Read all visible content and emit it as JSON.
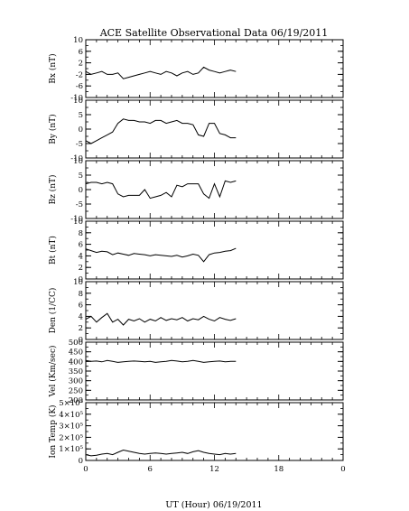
{
  "title": "ACE Satellite Observational Data   06/19/2011",
  "xlabel": "UT (Hour)  06/19/2011",
  "chart_data": [
    {
      "type": "line",
      "ylabel": "Bx (nT)",
      "ylim": [
        -10,
        10
      ],
      "yticks": [
        "-10",
        "-6",
        "-2",
        "2",
        "6",
        "10"
      ],
      "yticks_minor_step": 2,
      "xlim": [
        0,
        24
      ],
      "xticks": [
        "0",
        "6",
        "12",
        "18",
        "0"
      ],
      "series": [
        {
          "x": [
            0,
            0.5,
            1,
            1.5,
            2,
            2.5,
            3,
            3.5,
            4,
            4.5,
            5,
            5.5,
            6,
            6.5,
            7,
            7.5,
            8,
            8.5,
            9,
            9.5,
            10,
            10.5,
            11,
            11.5,
            12,
            12.5,
            13,
            13.5,
            14
          ],
          "y": [
            -1,
            -2,
            -1.5,
            -1,
            -2,
            -2,
            -1.5,
            -3.5,
            -3,
            -2.5,
            -2,
            -1.5,
            -1,
            -1.5,
            -2,
            -1,
            -1.5,
            -2.5,
            -1.5,
            -1,
            -2,
            -1.5,
            0.5,
            -0.5,
            -1,
            -1.5,
            -1,
            -0.5,
            -1
          ]
        }
      ]
    },
    {
      "type": "line",
      "ylabel": "By (nT)",
      "ylim": [
        -10,
        10
      ],
      "yticks": [
        "-10",
        "-5",
        "0",
        "5",
        "10"
      ],
      "yticks_minor_step": 2.5,
      "xlim": [
        0,
        24
      ],
      "xticks": [
        "0",
        "6",
        "12",
        "18",
        "0"
      ],
      "series": [
        {
          "x": [
            0,
            0.5,
            1,
            1.5,
            2,
            2.5,
            3,
            3.5,
            4,
            4.5,
            5,
            5.5,
            6,
            6.5,
            7,
            7.5,
            8,
            8.5,
            9,
            9.5,
            10,
            10.5,
            11,
            11.5,
            12,
            12.5,
            13,
            13.5,
            14
          ],
          "y": [
            -4,
            -5,
            -4,
            -3,
            -2,
            -1,
            2,
            3.5,
            3,
            3,
            2.5,
            2.5,
            2,
            3,
            3,
            2,
            2.5,
            3,
            2,
            2,
            1.5,
            -2,
            -2.5,
            2,
            2,
            -1.5,
            -2,
            -3,
            -3
          ]
        }
      ]
    },
    {
      "type": "line",
      "ylabel": "Bz (nT)",
      "ylim": [
        -10,
        10
      ],
      "yticks": [
        "-10",
        "-5",
        "0",
        "5",
        "10"
      ],
      "yticks_minor_step": 2.5,
      "xlim": [
        0,
        24
      ],
      "xticks": [
        "0",
        "6",
        "12",
        "18",
        "0"
      ],
      "series": [
        {
          "x": [
            0,
            0.5,
            1,
            1.5,
            2,
            2.5,
            3,
            3.5,
            4,
            4.5,
            5,
            5.5,
            6,
            6.5,
            7,
            7.5,
            8,
            8.5,
            9,
            9.5,
            10,
            10.5,
            11,
            11.5,
            12,
            12.5,
            13,
            13.5,
            14
          ],
          "y": [
            2,
            2.5,
            2.5,
            2,
            2.5,
            2,
            -1.5,
            -2.5,
            -2,
            -2,
            -2,
            0,
            -3,
            -2.5,
            -2,
            -1,
            -2.5,
            1.5,
            1,
            2,
            2,
            2,
            -1.5,
            -3,
            2,
            -2.5,
            3,
            2.5,
            3
          ]
        }
      ]
    },
    {
      "type": "line",
      "ylabel": "Bt (nT)",
      "ylim": [
        0,
        10
      ],
      "yticks": [
        "0",
        "2",
        "4",
        "6",
        "8",
        "10"
      ],
      "yticks_minor_step": 1,
      "xlim": [
        0,
        24
      ],
      "xticks": [
        "0",
        "6",
        "12",
        "18",
        "0"
      ],
      "series": [
        {
          "x": [
            0,
            0.5,
            1,
            1.5,
            2,
            2.5,
            3,
            3.5,
            4,
            4.5,
            5,
            5.5,
            6,
            6.5,
            7,
            7.5,
            8,
            8.5,
            9,
            9.5,
            10,
            10.5,
            11,
            11.5,
            12,
            12.5,
            13,
            13.5,
            14
          ],
          "y": [
            5.2,
            4.9,
            4.6,
            4.8,
            4.7,
            4.2,
            4.5,
            4.3,
            4.1,
            4.4,
            4.3,
            4.2,
            4.0,
            4.2,
            4.1,
            4.0,
            3.9,
            4.1,
            3.8,
            4.0,
            4.3,
            4.1,
            3.0,
            4.2,
            4.5,
            4.6,
            4.8,
            4.9,
            5.3
          ]
        }
      ]
    },
    {
      "type": "line",
      "ylabel": "Den (1/CC)",
      "ylim": [
        0,
        10
      ],
      "yticks": [
        "0",
        "2",
        "4",
        "6",
        "8",
        "10"
      ],
      "yticks_minor_step": 1,
      "xlim": [
        0,
        24
      ],
      "xticks": [
        "0",
        "6",
        "12",
        "18",
        "0"
      ],
      "series": [
        {
          "x": [
            0,
            0.5,
            1,
            1.5,
            2,
            2.5,
            3,
            3.5,
            4,
            4.5,
            5,
            5.5,
            6,
            6.5,
            7,
            7.5,
            8,
            8.5,
            9,
            9.5,
            10,
            10.5,
            11,
            11.5,
            12,
            12.5,
            13,
            13.5,
            14
          ],
          "y": [
            3.5,
            4,
            3,
            3.8,
            4.5,
            3,
            3.5,
            2.5,
            3.5,
            3.2,
            3.6,
            3,
            3.5,
            3.2,
            3.8,
            3.3,
            3.6,
            3.4,
            3.8,
            3.2,
            3.6,
            3.4,
            4,
            3.5,
            3.2,
            3.8,
            3.5,
            3.3,
            3.6
          ]
        }
      ]
    },
    {
      "type": "line",
      "ylabel": "Vel (Km/sec)",
      "ylim": [
        200,
        500
      ],
      "yticks": [
        "200",
        "250",
        "300",
        "350",
        "400",
        "450",
        "500"
      ],
      "yticks_minor_step": 25,
      "xlim": [
        0,
        24
      ],
      "xticks": [
        "0",
        "6",
        "12",
        "18",
        "0"
      ],
      "series": [
        {
          "x": [
            0,
            0.5,
            1,
            1.5,
            2,
            2.5,
            3,
            3.5,
            4,
            4.5,
            5,
            5.5,
            6,
            6.5,
            7,
            7.5,
            8,
            8.5,
            9,
            9.5,
            10,
            10.5,
            11,
            11.5,
            12,
            12.5,
            13,
            13.5,
            14
          ],
          "y": [
            405,
            400,
            402,
            398,
            405,
            400,
            395,
            398,
            400,
            402,
            400,
            398,
            400,
            395,
            398,
            400,
            405,
            402,
            398,
            400,
            405,
            400,
            395,
            398,
            400,
            402,
            398,
            400,
            400
          ]
        }
      ]
    },
    {
      "type": "line",
      "ylabel": "Ion Temp (K)",
      "ylim": [
        0,
        500000
      ],
      "yticks": [
        "0",
        "1×10⁵",
        "2×10⁵",
        "3×10⁵",
        "4×10⁵",
        "5×10⁵"
      ],
      "yticks_minor_step": 50000,
      "xlim": [
        0,
        24
      ],
      "xticks": [
        "0",
        "6",
        "12",
        "18",
        "0"
      ],
      "series": [
        {
          "x": [
            0,
            0.5,
            1,
            1.5,
            2,
            2.5,
            3,
            3.5,
            4,
            4.5,
            5,
            5.5,
            6,
            6.5,
            7,
            7.5,
            8,
            8.5,
            9,
            9.5,
            10,
            10.5,
            11,
            11.5,
            12,
            12.5,
            13,
            13.5,
            14
          ],
          "y": [
            50000,
            40000,
            45000,
            55000,
            60000,
            50000,
            70000,
            90000,
            80000,
            70000,
            60000,
            55000,
            60000,
            65000,
            60000,
            55000,
            60000,
            65000,
            70000,
            60000,
            75000,
            85000,
            70000,
            60000,
            55000,
            50000,
            60000,
            55000,
            60000
          ]
        }
      ]
    }
  ]
}
